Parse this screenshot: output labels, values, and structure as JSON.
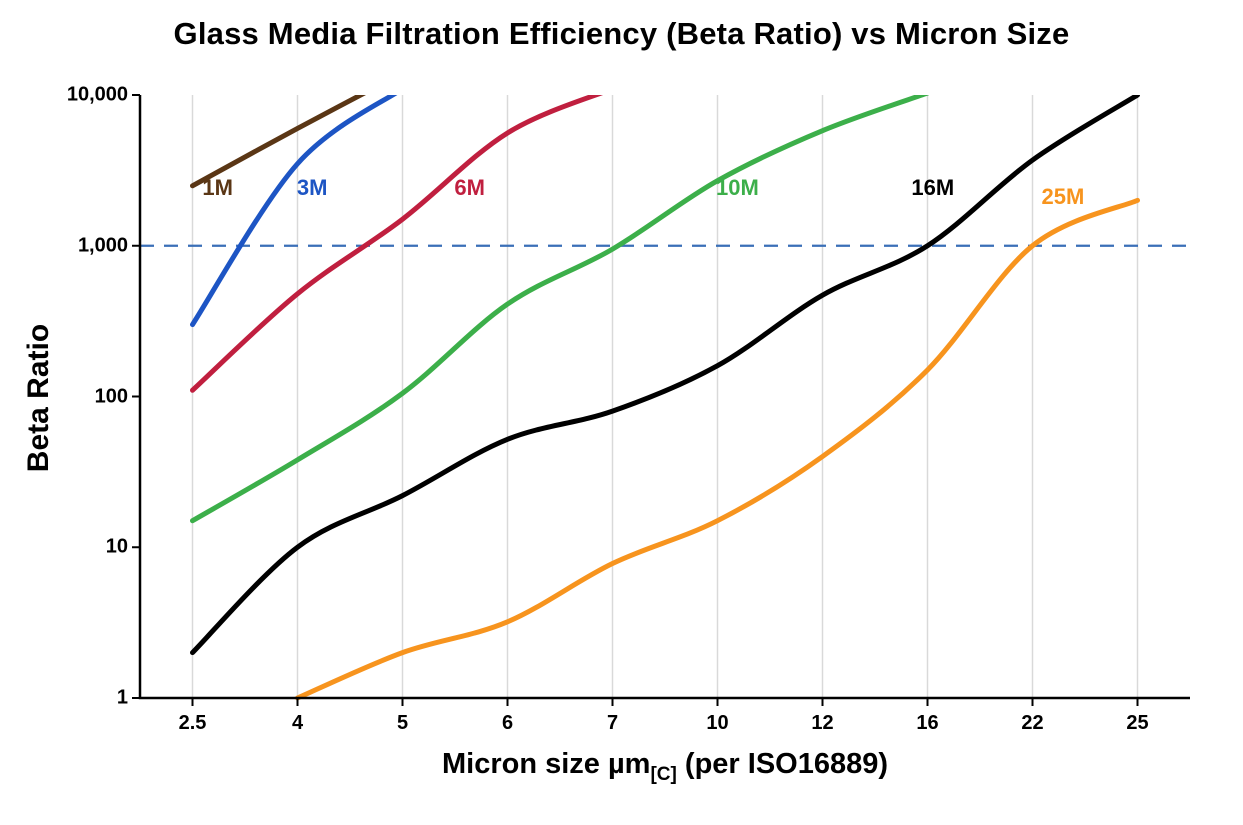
{
  "chart_data": {
    "type": "line",
    "title": "Glass Media Filtration Efficiency (Beta Ratio) vs Micron Size",
    "ylabel": "Beta Ratio",
    "xlabel": {
      "main": "Micron size µm",
      "sub": "[C]",
      "rest": " (per ISO16889)"
    },
    "x_categories": [
      "2.5",
      "4",
      "5",
      "6",
      "7",
      "10",
      "12",
      "16",
      "22",
      "25"
    ],
    "x_values": [
      2.5,
      4,
      5,
      6,
      7,
      10,
      12,
      16,
      22,
      25
    ],
    "y_ticks": [
      {
        "value": 1,
        "label": "1"
      },
      {
        "value": 10,
        "label": "10"
      },
      {
        "value": 100,
        "label": "100"
      },
      {
        "value": 1000,
        "label": "1,000"
      },
      {
        "value": 10000,
        "label": "10,000"
      }
    ],
    "y_scale": "log",
    "ylim": [
      1,
      10000
    ],
    "grid": {
      "vertical": true,
      "horizontal": false,
      "color": "#d9d9d9"
    },
    "axis_color": "#000000",
    "background": "#ffffff",
    "reference_line": {
      "value": 1000,
      "style": "dashed",
      "color": "#3a6fb7"
    },
    "series": [
      {
        "name": "1M",
        "color": "#5a3615",
        "values": [
          2500,
          6000,
          14000,
          null,
          null,
          null,
          null,
          null,
          null,
          null
        ],
        "label_x": 0.24,
        "label_y": 2400
      },
      {
        "name": "3M",
        "color": "#1d55c4",
        "values": [
          300,
          3500,
          11000,
          null,
          null,
          null,
          null,
          null,
          null,
          null
        ],
        "label_x": 1.14,
        "label_y": 2400
      },
      {
        "name": "6M",
        "color": "#c01f3f",
        "values": [
          110,
          480,
          1500,
          5600,
          11000,
          null,
          null,
          null,
          null,
          null
        ],
        "label_x": 2.64,
        "label_y": 2400
      },
      {
        "name": "10M",
        "color": "#3caf4a",
        "values": [
          15,
          38,
          105,
          410,
          950,
          2700,
          5800,
          10300,
          null,
          null
        ],
        "label_x": 5.19,
        "label_y": 2400
      },
      {
        "name": "16M",
        "color": "#000000",
        "values": [
          2,
          10,
          22,
          52,
          80,
          160,
          470,
          1000,
          3700,
          10000
        ],
        "label_x": 7.05,
        "label_y": 2400
      },
      {
        "name": "25M",
        "color": "#f7941e",
        "values": [
          null,
          1,
          2,
          3.2,
          7.8,
          15,
          40,
          150,
          1000,
          2000
        ],
        "label_x": 8.29,
        "label_y": 2100
      }
    ]
  }
}
